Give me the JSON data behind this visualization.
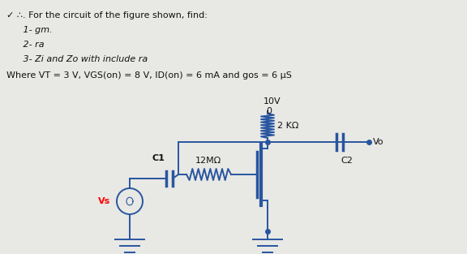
{
  "title_line1": "✓ ∴. For the circuit of the figure shown, find:",
  "item1": "   1- gm.",
  "item2": "   2- ra",
  "item3": "   3- Zi and Zo with include ra",
  "condition": "Where VT = 3 V, VGS(on) = 8 V, ID(on) = 6 mA and gos = 6 μS",
  "bg_color": "#e8e8e4",
  "text_color": "#111111",
  "circuit_color": "#2855a0",
  "label_10V": "10V",
  "label_0": "0",
  "label_12M": "12MΩ",
  "label_2K": "2 KΩ",
  "label_Vo": "Vo",
  "label_C1": "C1",
  "label_C2": "C2",
  "label_Vs": "Vs"
}
